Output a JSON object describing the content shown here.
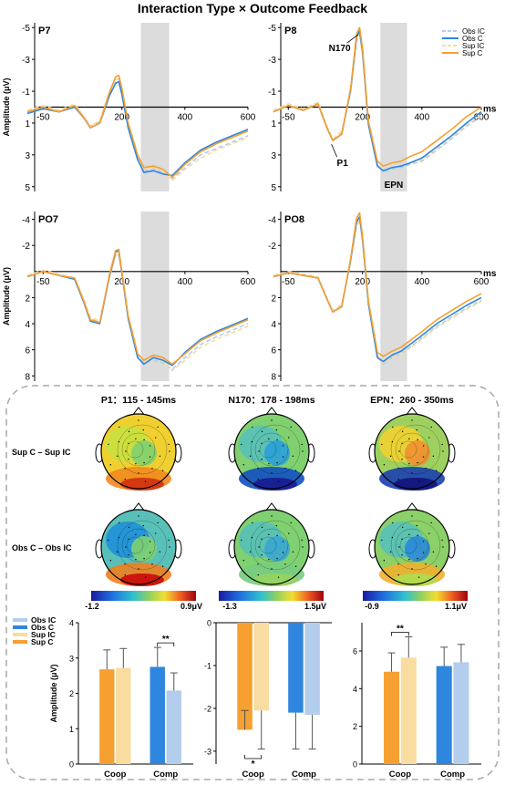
{
  "title": "Interaction Type × Outcome Feedback",
  "colors": {
    "obs_ic": "#b3cdec",
    "obs_c": "#2e86de",
    "sup_ic": "#f8dca0",
    "sup_c": "#f5a030",
    "window": "#dcdcdc"
  },
  "legend_erp": [
    "Obs IC",
    "Obs C",
    "Sup IC",
    "Sup C"
  ],
  "legend_bar": [
    "Obs IC",
    "Obs C",
    "Sup IC",
    "Sup C"
  ],
  "erp_panels": [
    {
      "id": "P7",
      "label": "P7",
      "ylabel": "Amplitude (μV)",
      "yticks": [
        -5,
        -3,
        -1,
        1,
        3,
        5
      ],
      "ylim": [
        -5.3,
        5.3
      ],
      "xunit": ""
    },
    {
      "id": "P8",
      "label": "P8",
      "ylabel": "",
      "yticks": [
        -5,
        -3,
        -1,
        1,
        3,
        5
      ],
      "ylim": [
        -5.3,
        5.3
      ],
      "xunit": "ms",
      "annotations": [
        {
          "text": "N170",
          "x": 178,
          "y": -4.2
        },
        {
          "text": "P1",
          "x": 120,
          "y": 2.1
        },
        {
          "text": "EPN",
          "x": 305,
          "y": 4.1
        }
      ]
    },
    {
      "id": "PO7",
      "label": "PO7",
      "ylabel": "Amplitude (μV)",
      "yticks": [
        -4,
        -2,
        2,
        4,
        6,
        8
      ],
      "ylim": [
        -4.6,
        8.4
      ],
      "xunit": ""
    },
    {
      "id": "PO8",
      "label": "PO8",
      "ylabel": "",
      "yticks": [
        -4,
        -2,
        2,
        4,
        6,
        8
      ],
      "ylim": [
        -4.6,
        8.4
      ],
      "xunit": "ms"
    }
  ],
  "erp_xticks": [
    -50,
    200,
    400,
    600
  ],
  "erp_xlim": [
    -100,
    600
  ],
  "erp_window": [
    260,
    350
  ],
  "topo": {
    "columns": [
      "P1：115 - 145ms",
      "N170：178 - 198ms",
      "EPN：260 - 350ms"
    ],
    "rows": [
      "Sup C – Sup IC",
      "Obs C – Obs IC"
    ],
    "colorbars": [
      {
        "min": "-1.2",
        "max": "0.9μV"
      },
      {
        "min": "-1.3",
        "max": "1.5μV"
      },
      {
        "min": "-0.9",
        "max": "1.1μV"
      }
    ]
  },
  "chart_data": [
    {
      "type": "line",
      "title": "",
      "xlabel": "",
      "ylabel": "Amplitude (μV)",
      "x": [
        -100,
        -50,
        0,
        50,
        80,
        100,
        130,
        160,
        180,
        190,
        200,
        220,
        250,
        270,
        300,
        330,
        360,
        400,
        450,
        500,
        550,
        600
      ],
      "ylim": [
        -5.3,
        5.3
      ],
      "y_inverted": true,
      "series": [
        {
          "name": "Obs IC",
          "id": "P7",
          "values": [
            0.3,
            0.0,
            0.2,
            -0.1,
            0.6,
            1.2,
            0.9,
            -0.8,
            -1.6,
            -1.7,
            -0.9,
            1.2,
            3.2,
            4.0,
            3.9,
            4.1,
            4.5,
            3.8,
            3.0,
            2.6,
            2.2,
            1.8
          ]
        },
        {
          "name": "Obs C",
          "id": "P7",
          "values": [
            0.4,
            0.1,
            0.3,
            0.0,
            0.7,
            1.3,
            1.0,
            -0.7,
            -1.5,
            -1.6,
            -0.8,
            1.3,
            3.3,
            4.1,
            4.0,
            4.2,
            4.3,
            3.5,
            2.7,
            2.2,
            1.8,
            1.4
          ]
        },
        {
          "name": "Sup IC",
          "id": "P7",
          "values": [
            0.2,
            -0.1,
            0.2,
            -0.2,
            0.6,
            1.2,
            0.8,
            -0.9,
            -1.7,
            -1.8,
            -1.0,
            1.1,
            3.1,
            3.9,
            3.8,
            4.0,
            4.6,
            3.9,
            3.2,
            2.7,
            2.3,
            1.9
          ]
        },
        {
          "name": "Sup C",
          "id": "P7",
          "values": [
            0.3,
            0.0,
            0.3,
            -0.1,
            0.7,
            1.3,
            1.0,
            -0.9,
            -1.9,
            -2.0,
            -1.2,
            1.0,
            3.0,
            3.8,
            3.7,
            3.9,
            4.4,
            3.6,
            2.8,
            2.3,
            1.9,
            1.5
          ]
        },
        {
          "name": "Obs IC",
          "id": "P8",
          "values": [
            0.2,
            -0.2,
            0.1,
            -0.3,
            1.2,
            2.0,
            1.6,
            -1.0,
            -4.2,
            -4.6,
            -3.4,
            1.0,
            3.6,
            4.1,
            3.9,
            3.8,
            3.6,
            3.4,
            2.7,
            2.0,
            1.2,
            0.6
          ]
        },
        {
          "name": "Obs C",
          "id": "P8",
          "values": [
            0.3,
            -0.1,
            0.2,
            -0.2,
            1.3,
            2.1,
            1.7,
            -1.1,
            -4.4,
            -4.8,
            -3.5,
            1.1,
            3.7,
            4.0,
            3.8,
            3.7,
            3.5,
            3.2,
            2.5,
            1.8,
            1.0,
            0.3
          ]
        },
        {
          "name": "Sup IC",
          "id": "P8",
          "values": [
            0.2,
            -0.2,
            0.1,
            -0.3,
            1.2,
            2.0,
            1.5,
            -1.0,
            -4.1,
            -4.5,
            -3.3,
            0.9,
            3.5,
            4.0,
            3.8,
            3.7,
            3.5,
            3.3,
            2.6,
            1.9,
            1.1,
            0.5
          ]
        },
        {
          "name": "Sup C",
          "id": "P8",
          "values": [
            0.3,
            -0.1,
            0.2,
            -0.2,
            1.3,
            2.1,
            1.7,
            -1.2,
            -4.6,
            -5.0,
            -3.7,
            0.9,
            3.4,
            3.7,
            3.5,
            3.4,
            3.1,
            2.8,
            2.1,
            1.4,
            0.6,
            0.0
          ]
        }
      ]
    },
    {
      "type": "line",
      "title": "",
      "xlabel": "",
      "ylabel": "Amplitude (μV)",
      "x": [
        -100,
        -50,
        0,
        50,
        80,
        100,
        130,
        160,
        180,
        190,
        200,
        220,
        250,
        270,
        300,
        330,
        360,
        400,
        450,
        500,
        550,
        600
      ],
      "ylim": [
        -4.6,
        8.4
      ],
      "y_inverted": true,
      "series": [
        {
          "name": "Obs IC",
          "id": "PO7",
          "values": [
            0.3,
            -0.1,
            0.2,
            0.5,
            2.2,
            3.6,
            3.9,
            0.5,
            -1.3,
            -1.4,
            0.2,
            3.5,
            6.4,
            7.0,
            6.8,
            7.0,
            7.5,
            6.6,
            5.6,
            5.0,
            4.5,
            4.0
          ]
        },
        {
          "name": "Obs C",
          "id": "PO7",
          "values": [
            0.4,
            0.0,
            0.3,
            0.6,
            2.4,
            3.8,
            4.0,
            0.4,
            -1.5,
            -1.6,
            0.1,
            3.6,
            6.6,
            7.1,
            6.6,
            6.8,
            7.2,
            6.2,
            5.2,
            4.6,
            4.1,
            3.6
          ]
        },
        {
          "name": "Sup IC",
          "id": "PO7",
          "values": [
            0.3,
            -0.1,
            0.2,
            0.5,
            2.2,
            3.5,
            3.8,
            0.5,
            -1.2,
            -1.3,
            0.3,
            3.4,
            6.3,
            6.9,
            6.7,
            6.9,
            7.6,
            6.8,
            5.8,
            5.2,
            4.7,
            4.2
          ]
        },
        {
          "name": "Sup C",
          "id": "PO7",
          "values": [
            0.4,
            0.0,
            0.3,
            0.5,
            2.3,
            3.7,
            3.9,
            0.3,
            -1.6,
            -1.7,
            0.0,
            3.4,
            6.3,
            6.8,
            6.4,
            6.6,
            7.1,
            6.3,
            5.3,
            4.7,
            4.2,
            3.7
          ]
        },
        {
          "name": "Obs IC",
          "id": "PO8",
          "values": [
            0.3,
            0.0,
            0.2,
            0.4,
            2.0,
            3.0,
            2.6,
            -0.8,
            -3.6,
            -4.0,
            -2.4,
            2.4,
            6.5,
            7.1,
            6.6,
            6.3,
            5.8,
            5.1,
            4.2,
            3.5,
            2.8,
            2.2
          ]
        },
        {
          "name": "Obs C",
          "id": "PO8",
          "values": [
            0.4,
            0.1,
            0.3,
            0.5,
            2.1,
            3.1,
            2.7,
            -0.9,
            -3.8,
            -4.2,
            -2.5,
            2.5,
            6.6,
            6.9,
            6.4,
            6.1,
            5.6,
            4.9,
            4.0,
            3.3,
            2.6,
            2.0
          ]
        },
        {
          "name": "Sup IC",
          "id": "PO8",
          "values": [
            0.3,
            0.0,
            0.2,
            0.4,
            2.0,
            3.0,
            2.5,
            -0.8,
            -3.5,
            -3.9,
            -2.3,
            2.3,
            6.4,
            7.0,
            6.6,
            6.3,
            5.9,
            5.2,
            4.3,
            3.6,
            2.9,
            2.3
          ]
        },
        {
          "name": "Sup C",
          "id": "PO8",
          "values": [
            0.4,
            0.1,
            0.3,
            0.5,
            2.1,
            3.1,
            2.7,
            -1.0,
            -4.1,
            -4.5,
            -2.7,
            2.3,
            6.2,
            6.5,
            6.1,
            5.8,
            5.3,
            4.6,
            3.7,
            3.0,
            2.3,
            1.7
          ]
        }
      ]
    },
    {
      "type": "bar",
      "title": "P1",
      "ylabel": "Amplitude (μV)",
      "categories": [
        "Coop",
        "Comp"
      ],
      "ylim": [
        0,
        4
      ],
      "yticks": [
        0,
        1,
        2,
        3,
        4
      ],
      "series": [
        {
          "name": "Sup C",
          "values": [
            2.68,
            null
          ],
          "errors": [
            0.55,
            null
          ]
        },
        {
          "name": "Sup IC",
          "values": [
            2.72,
            null
          ],
          "errors": [
            0.55,
            null
          ]
        },
        {
          "name": "Obs C",
          "values": [
            null,
            2.75
          ],
          "errors": [
            null,
            0.55
          ]
        },
        {
          "name": "Obs IC",
          "values": [
            null,
            2.08
          ],
          "errors": [
            null,
            0.5
          ]
        }
      ],
      "significance": [
        {
          "category": "Comp",
          "text": "**"
        }
      ]
    },
    {
      "type": "bar",
      "title": "N170",
      "ylabel": "",
      "categories": [
        "Coop",
        "Comp"
      ],
      "ylim": [
        -3.3,
        0
      ],
      "yticks": [
        0,
        -1,
        -2,
        -3
      ],
      "series": [
        {
          "name": "Sup C",
          "values": [
            -2.5,
            null
          ],
          "errors": [
            0.45,
            null
          ]
        },
        {
          "name": "Sup IC",
          "values": [
            -2.05,
            null
          ],
          "errors": [
            0.9,
            null
          ]
        },
        {
          "name": "Obs C",
          "values": [
            null,
            -2.1
          ],
          "errors": [
            null,
            0.85
          ]
        },
        {
          "name": "Obs IC",
          "values": [
            null,
            -2.15
          ],
          "errors": [
            null,
            0.8
          ]
        }
      ],
      "significance": [
        {
          "category": "Coop",
          "text": "*"
        }
      ]
    },
    {
      "type": "bar",
      "title": "EPN",
      "ylabel": "",
      "categories": [
        "Coop",
        "Comp"
      ],
      "ylim": [
        0,
        7.5
      ],
      "yticks": [
        0,
        2,
        4,
        6
      ],
      "series": [
        {
          "name": "Sup C",
          "values": [
            4.9,
            null
          ],
          "errors": [
            1.0,
            null
          ]
        },
        {
          "name": "Sup IC",
          "values": [
            5.65,
            null
          ],
          "errors": [
            1.1,
            null
          ]
        },
        {
          "name": "Obs C",
          "values": [
            null,
            5.2
          ],
          "errors": [
            null,
            1.0
          ]
        },
        {
          "name": "Obs IC",
          "values": [
            null,
            5.4
          ],
          "errors": [
            null,
            0.95
          ]
        }
      ],
      "significance": [
        {
          "category": "Coop",
          "text": "**"
        }
      ]
    }
  ]
}
